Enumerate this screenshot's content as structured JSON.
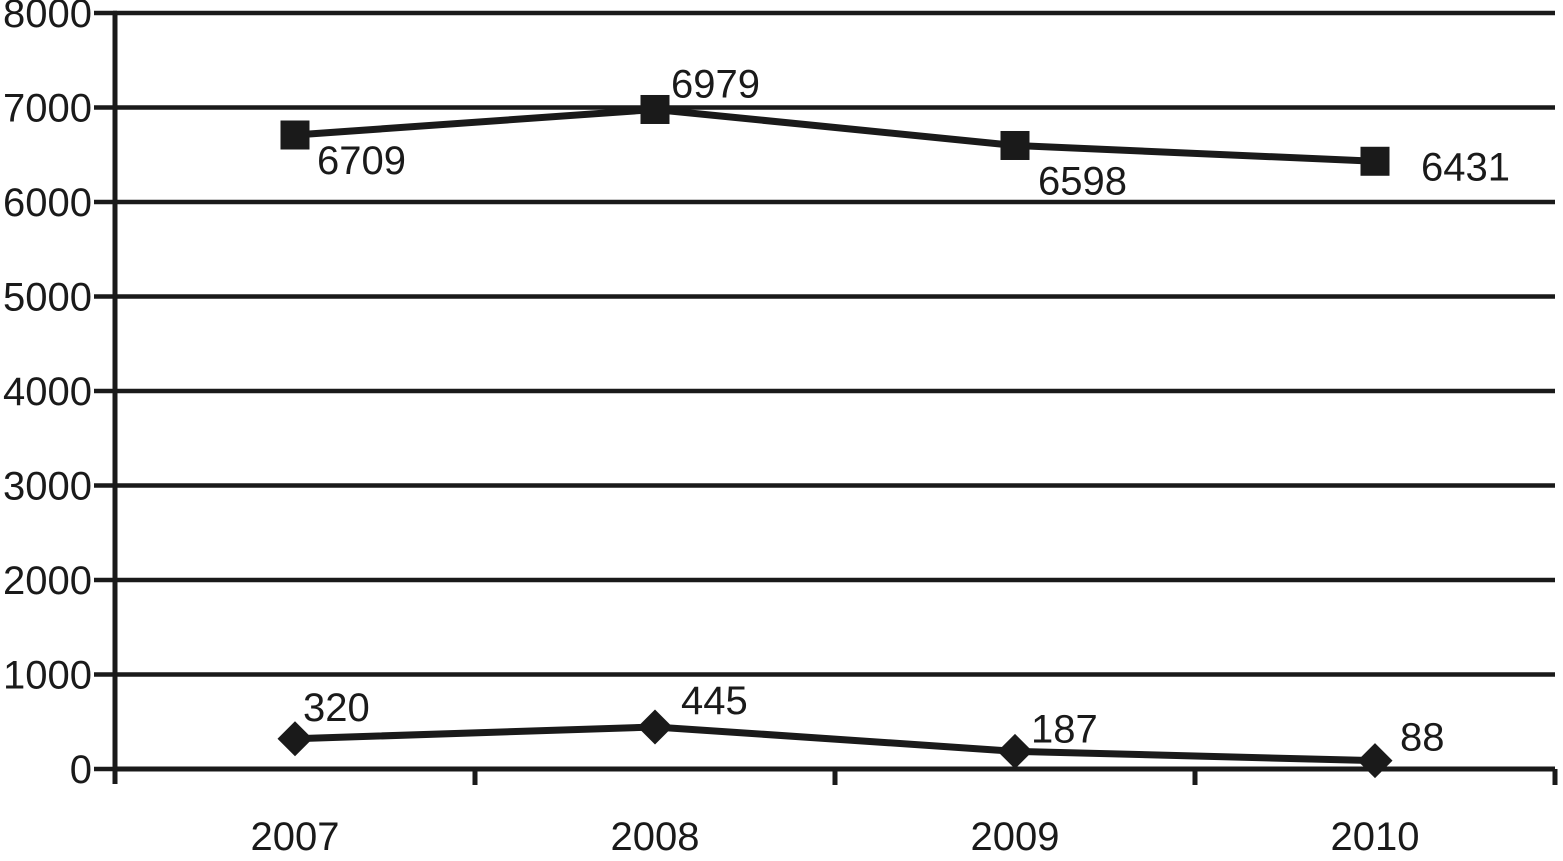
{
  "chart_data": {
    "type": "line",
    "title": "",
    "xlabel": "",
    "ylabel": "",
    "categories": [
      "2007",
      "2008",
      "2009",
      "2010"
    ],
    "series": [
      {
        "name": "upper-series",
        "marker": "square",
        "values": [
          6709,
          6979,
          6598,
          6431
        ],
        "point_labels": [
          "6709",
          "6979",
          "6598",
          "6431"
        ]
      },
      {
        "name": "lower-series",
        "marker": "diamond",
        "values": [
          320,
          445,
          187,
          88
        ],
        "point_labels": [
          "320",
          "445",
          "187",
          "88"
        ]
      }
    ],
    "ylim": [
      0,
      8000
    ],
    "ytick_interval": 1000,
    "yticks": [
      0,
      1000,
      2000,
      3000,
      4000,
      5000,
      6000,
      7000,
      8000
    ],
    "ytick_labels": [
      "0",
      "1000",
      "2000",
      "3000",
      "4000",
      "5000",
      "6000",
      "7000",
      "8000"
    ],
    "grid": "horizontal",
    "legend": "none",
    "colors": {
      "ink": "#1a1a1a",
      "background": "#ffffff"
    },
    "label_offsets": [
      [
        [
          22,
          39
        ],
        [
          16,
          -12
        ],
        [
          23,
          49
        ],
        [
          46,
          19
        ]
      ],
      [
        [
          8,
          -18
        ],
        [
          26,
          -13
        ],
        [
          16,
          -9
        ],
        [
          25,
          -10
        ]
      ]
    ]
  }
}
